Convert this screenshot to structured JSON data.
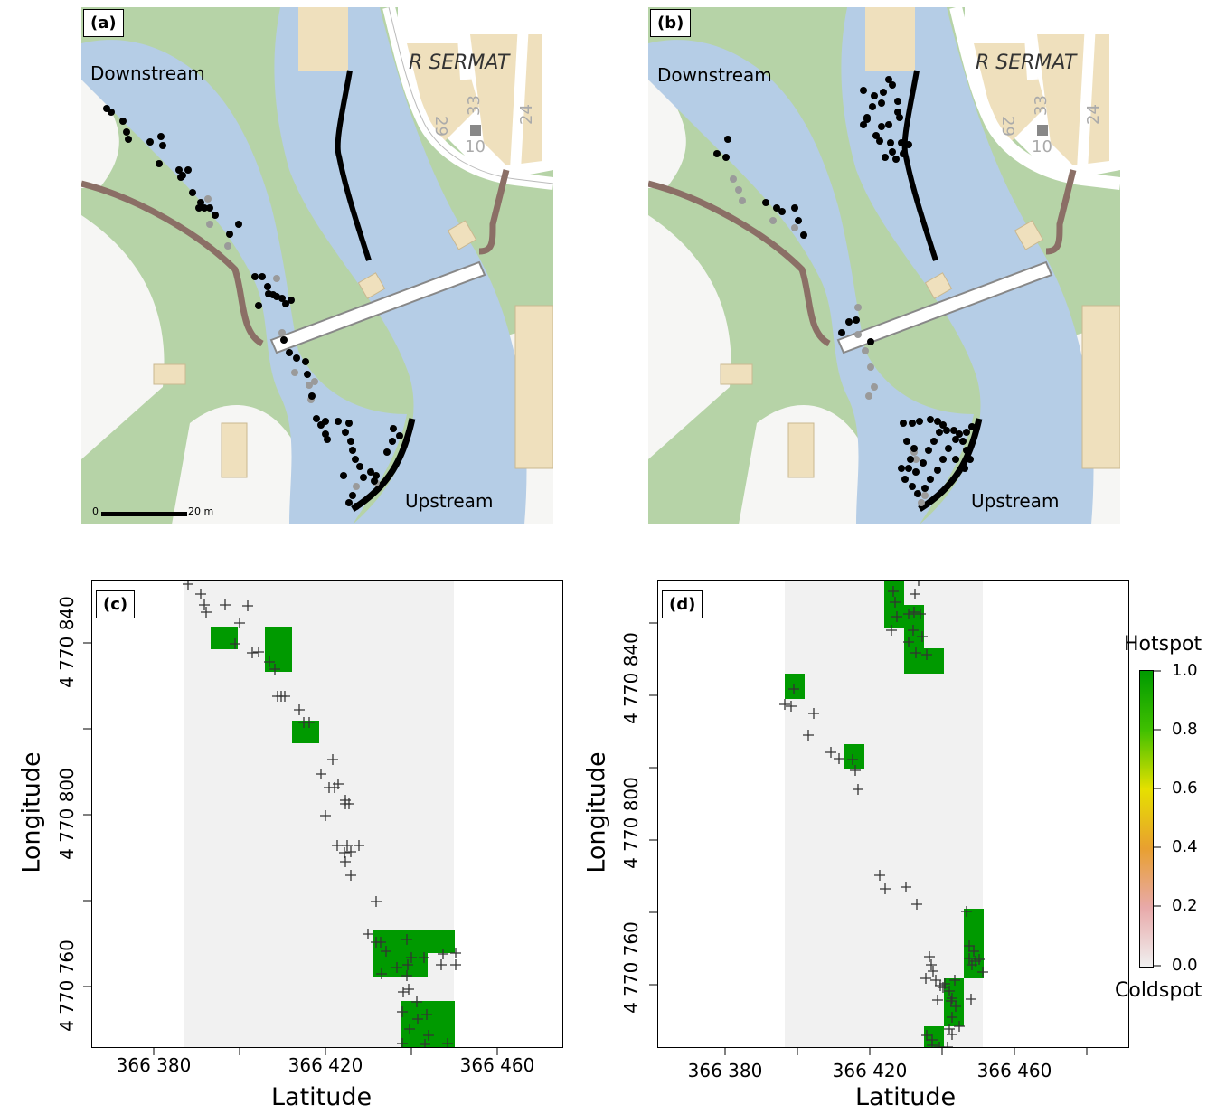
{
  "panels": {
    "a": {
      "label": "(a)",
      "downstream": "Downstream",
      "upstream": "Upstream",
      "scale_start": "0",
      "scale_end": "20 m",
      "street": "R SERMAT",
      "house_numbers": [
        "29",
        "33",
        "24",
        "10"
      ]
    },
    "b": {
      "label": "(b)",
      "downstream": "Downstream",
      "upstream": "Upstream",
      "street": "R SERMAT",
      "house_numbers": [
        "29",
        "33",
        "24",
        "10"
      ]
    },
    "c": {
      "label": "(c)",
      "ylabel": "Longitude",
      "xlabel": "Latitude",
      "xticks": [
        "366 380",
        "366 420",
        "366 460"
      ],
      "yticks": [
        "4 770 760",
        "4 770 800",
        "4 770 840"
      ]
    },
    "d": {
      "label": "(d)",
      "ylabel": "Longitude",
      "xlabel": "Latitude",
      "xticks": [
        "366 380",
        "366 420",
        "366 460"
      ],
      "yticks": [
        "4 770 760",
        "4 770 800",
        "4 770 840"
      ]
    }
  },
  "legend": {
    "top_label": "Hotspot",
    "bottom_label": "Coldspot",
    "ticks": [
      "1.0",
      "0.8",
      "0.6",
      "0.4",
      "0.2",
      "0.0"
    ],
    "colors": [
      "#f0f0f0",
      "#e8a9a9",
      "#e8a030",
      "#e6e000",
      "#40c000",
      "#009a00"
    ]
  },
  "colors": {
    "water": "#b5cde6",
    "green": "#b6d3a7",
    "road": "#ffffff",
    "building": "#efe0bd",
    "hotspot": "#009a00",
    "plot_bg": "#f1f1f1"
  }
}
